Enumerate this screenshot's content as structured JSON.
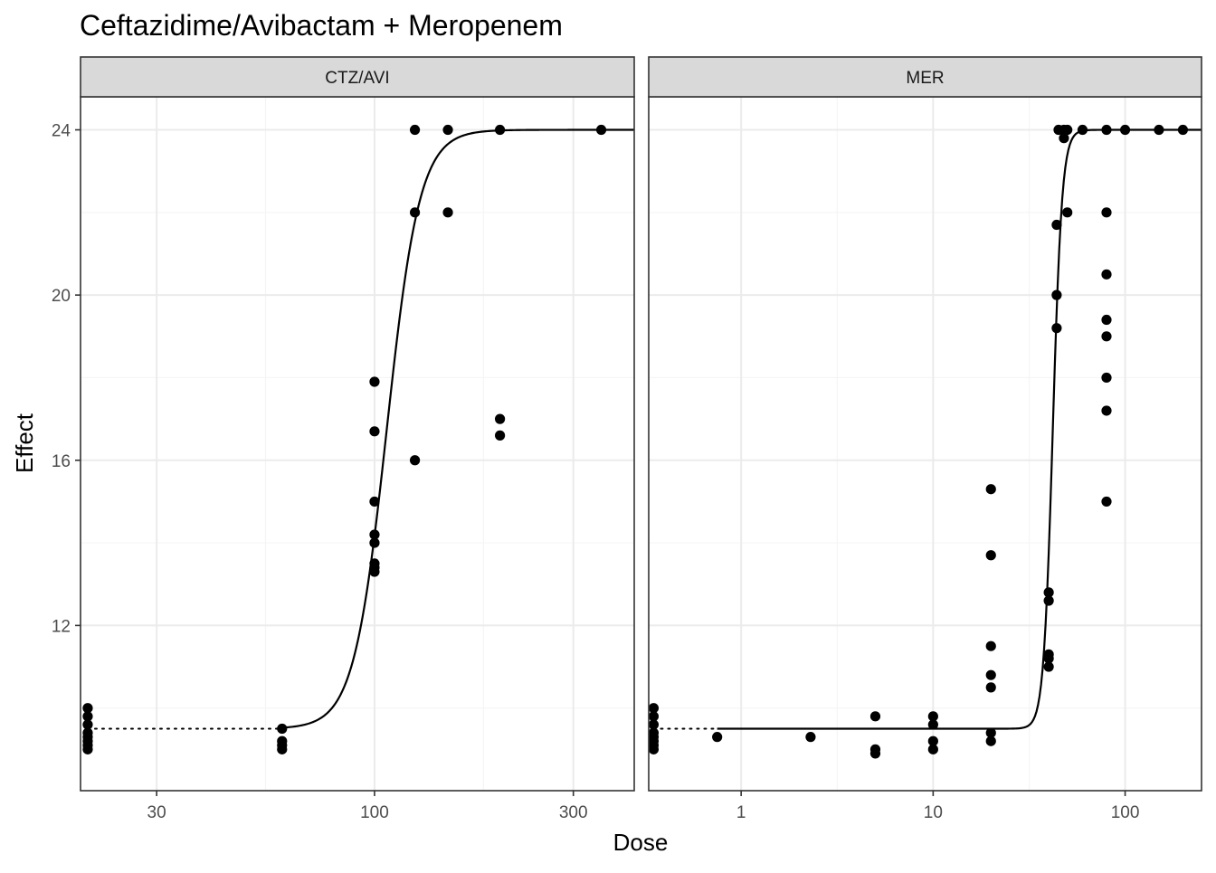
{
  "chart_data": {
    "type": "scatter",
    "title": "Ceftazidime/Avibactam + Meropenem",
    "xlabel": "Dose",
    "ylabel": "Effect",
    "x_scale": "log",
    "grid": true,
    "legend": "none",
    "y": {
      "range": [
        8.0,
        24.8
      ],
      "ticks": [
        12,
        16,
        20,
        24
      ],
      "tick_labels": [
        "12",
        "16",
        "20",
        "24"
      ]
    },
    "colors": {
      "strip_fill": "#d9d9d9",
      "points": "#000000",
      "grid_major": "#ebebeb",
      "grid_minor": "#f5f5f5",
      "panel_border": "#333333"
    },
    "panels": [
      {
        "name": "CTZ/AVI",
        "x_range": [
          19.7,
          420
        ],
        "x_ticks": [
          30,
          100,
          300
        ],
        "x_tick_labels": [
          "30",
          "100",
          "300"
        ],
        "zero_dose_position": 20.5,
        "zero_dose_effect": 9.5,
        "curve_start_dose": 60,
        "curve": {
          "bottom": 9.5,
          "top": 24.0,
          "ec50": 107,
          "hill": 11
        },
        "points": [
          [
            0,
            10.0
          ],
          [
            0,
            9.8
          ],
          [
            0,
            9.6
          ],
          [
            0,
            9.4
          ],
          [
            0,
            9.3
          ],
          [
            0,
            9.2
          ],
          [
            0,
            9.1
          ],
          [
            0,
            9.0
          ],
          [
            60,
            9.5
          ],
          [
            60,
            9.2
          ],
          [
            60,
            9.1
          ],
          [
            60,
            9.0
          ],
          [
            100,
            17.9
          ],
          [
            100,
            16.7
          ],
          [
            100,
            15.0
          ],
          [
            100,
            14.2
          ],
          [
            100,
            14.0
          ],
          [
            100,
            13.5
          ],
          [
            100,
            13.4
          ],
          [
            100,
            13.3
          ],
          [
            125,
            24.0
          ],
          [
            125,
            22.0
          ],
          [
            125,
            16.0
          ],
          [
            150,
            24.0
          ],
          [
            150,
            22.0
          ],
          [
            200,
            24.0
          ],
          [
            200,
            17.0
          ],
          [
            200,
            16.6
          ],
          [
            350,
            24.0
          ]
        ]
      },
      {
        "name": "MER",
        "x_range": [
          0.33,
          250
        ],
        "x_ticks": [
          1,
          10,
          100
        ],
        "x_tick_labels": [
          "1",
          "10",
          "100"
        ],
        "zero_dose_position": 0.35,
        "zero_dose_effect": 9.5,
        "curve_start_dose": 0.75,
        "curve": {
          "bottom": 9.5,
          "top": 24.0,
          "ec50": 42,
          "hill": 18
        },
        "points": [
          [
            0,
            10.0
          ],
          [
            0,
            9.8
          ],
          [
            0,
            9.6
          ],
          [
            0,
            9.4
          ],
          [
            0,
            9.3
          ],
          [
            0,
            9.2
          ],
          [
            0,
            9.1
          ],
          [
            0,
            9.0
          ],
          [
            0.75,
            9.3
          ],
          [
            2.3,
            9.3
          ],
          [
            5,
            9.8
          ],
          [
            5,
            9.0
          ],
          [
            5,
            8.9
          ],
          [
            10,
            9.8
          ],
          [
            10,
            9.6
          ],
          [
            10,
            9.2
          ],
          [
            10,
            9.0
          ],
          [
            20,
            15.3
          ],
          [
            20,
            13.7
          ],
          [
            20,
            11.5
          ],
          [
            20,
            10.8
          ],
          [
            20,
            10.5
          ],
          [
            20,
            9.4
          ],
          [
            20,
            9.2
          ],
          [
            40,
            12.8
          ],
          [
            40,
            12.6
          ],
          [
            40,
            11.3
          ],
          [
            40,
            11.2
          ],
          [
            40,
            11.0
          ],
          [
            44,
            21.7
          ],
          [
            44,
            20.0
          ],
          [
            44,
            19.2
          ],
          [
            45,
            24.0
          ],
          [
            48,
            24.0
          ],
          [
            48,
            23.8
          ],
          [
            50,
            24.0
          ],
          [
            50,
            22.0
          ],
          [
            60,
            24.0
          ],
          [
            80,
            24.0
          ],
          [
            80,
            22.0
          ],
          [
            80,
            20.5
          ],
          [
            80,
            19.4
          ],
          [
            80,
            19.0
          ],
          [
            80,
            18.0
          ],
          [
            80,
            17.2
          ],
          [
            80,
            15.0
          ],
          [
            100,
            24.0
          ],
          [
            150,
            24.0
          ],
          [
            200,
            24.0
          ]
        ]
      }
    ]
  }
}
